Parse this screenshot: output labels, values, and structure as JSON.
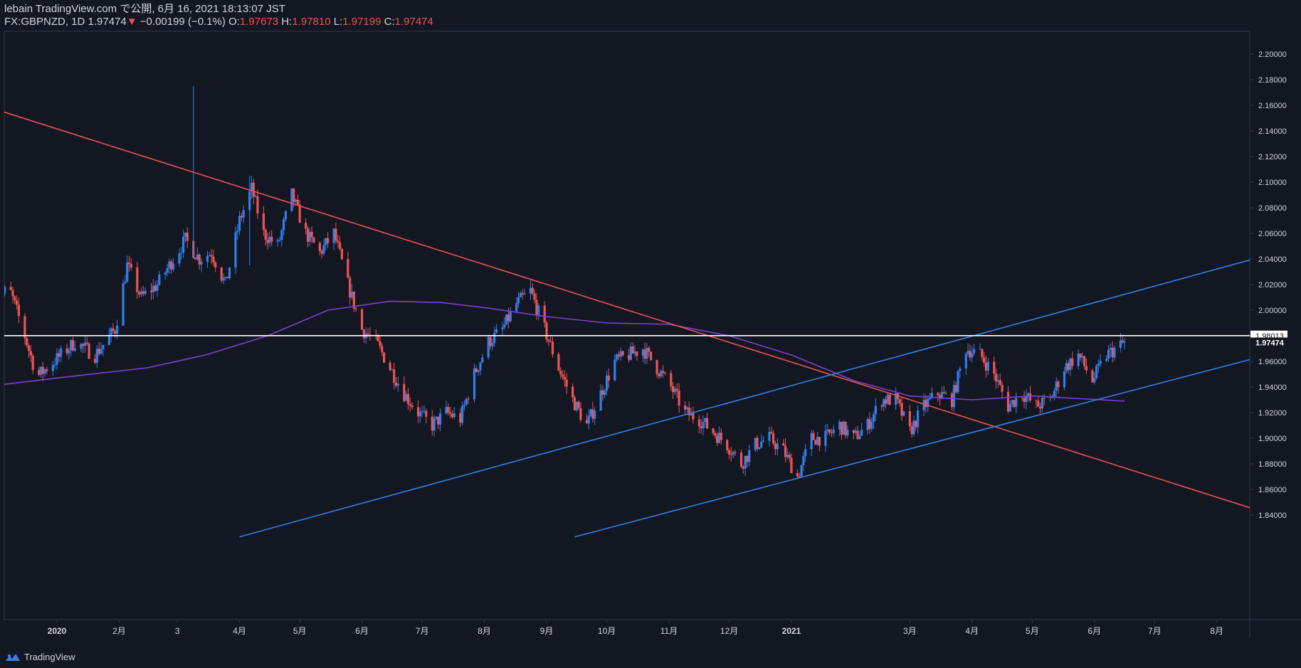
{
  "header": {
    "line1": "lebain TradingView.com で公開, 6月 16, 2021 18:13:07 JST",
    "symbol": "FX:GBPNZD, 1D",
    "last": "1.97474",
    "change_arrow": "▼",
    "change": "−0.00199 (−0.1%)",
    "o_label": "O:",
    "o": "1.97673",
    "h_label": "H:",
    "h": "1.97810",
    "l_label": "L:",
    "l": "1.97199",
    "c_label": "C:",
    "c": "1.97474"
  },
  "footer": {
    "brand": "TradingView",
    "logo_icon": "tradingview-logo-icon"
  },
  "colors": {
    "background": "#131722",
    "up": "#2f80ed",
    "down": "#ef5350",
    "trend_down": "#f0504e",
    "channel": "#2f80ed",
    "ma": "#7e3fd3",
    "level": "#ffffff"
  },
  "chart_data": {
    "type": "candlestick",
    "yticks": [
      "2.20000",
      "2.18000",
      "2.16000",
      "2.14000",
      "2.12000",
      "2.10000",
      "2.08000",
      "2.06000",
      "2.04000",
      "2.02000",
      "2.00000",
      "1.98000",
      "1.96000",
      "1.94000",
      "1.92000",
      "1.90000",
      "1.88000",
      "1.86000",
      "1.84000"
    ],
    "xticks": [
      "2020",
      "2月",
      "3",
      "4月",
      "5月",
      "6月",
      "7月",
      "8月",
      "9月",
      "10月",
      "11月",
      "12月",
      "2021",
      "3月",
      "4月",
      "5月",
      "6月",
      "7月",
      "8月"
    ],
    "ylim": [
      1.82,
      2.21
    ],
    "price_labels": {
      "level": "1.98013",
      "last": "1.97474"
    },
    "path": [
      [
        "2019-12-01",
        2.005
      ],
      [
        "2019-12-08",
        2.018
      ],
      [
        "2019-12-15",
        1.985
      ],
      [
        "2019-12-22",
        1.948
      ],
      [
        "2020-01-01",
        1.962
      ],
      [
        "2020-01-10",
        1.975
      ],
      [
        "2020-01-20",
        1.965
      ],
      [
        "2020-01-30",
        1.985
      ],
      [
        "2020-02-05",
        2.035
      ],
      [
        "2020-02-12",
        2.01
      ],
      [
        "2020-02-20",
        2.02
      ],
      [
        "2020-02-28",
        2.04
      ],
      [
        "2020-03-05",
        2.055
      ],
      [
        "2020-03-12",
        2.04
      ],
      [
        "2020-03-18",
        2.045
      ],
      [
        "2020-03-25",
        2.02
      ],
      [
        "2020-04-01",
        2.07
      ],
      [
        "2020-04-07",
        2.095
      ],
      [
        "2020-04-13",
        2.06
      ],
      [
        "2020-04-20",
        2.05
      ],
      [
        "2020-04-27",
        2.09
      ],
      [
        "2020-05-04",
        2.06
      ],
      [
        "2020-05-11",
        2.045
      ],
      [
        "2020-05-18",
        2.06
      ],
      [
        "2020-05-25",
        2.02
      ],
      [
        "2020-06-01",
        1.985
      ],
      [
        "2020-06-08",
        1.975
      ],
      [
        "2020-06-15",
        1.955
      ],
      [
        "2020-06-22",
        1.935
      ],
      [
        "2020-06-29",
        1.92
      ],
      [
        "2020-07-06",
        1.91
      ],
      [
        "2020-07-13",
        1.92
      ],
      [
        "2020-07-20",
        1.915
      ],
      [
        "2020-07-27",
        1.95
      ],
      [
        "2020-08-03",
        1.975
      ],
      [
        "2020-08-10",
        1.985
      ],
      [
        "2020-08-17",
        2.005
      ],
      [
        "2020-08-24",
        2.015
      ],
      [
        "2020-08-31",
        1.985
      ],
      [
        "2020-09-07",
        1.955
      ],
      [
        "2020-09-14",
        1.93
      ],
      [
        "2020-09-21",
        1.91
      ],
      [
        "2020-09-28",
        1.935
      ],
      [
        "2020-10-05",
        1.96
      ],
      [
        "2020-10-12",
        1.965
      ],
      [
        "2020-10-19",
        1.97
      ],
      [
        "2020-10-26",
        1.955
      ],
      [
        "2020-11-02",
        1.94
      ],
      [
        "2020-11-09",
        1.92
      ],
      [
        "2020-11-16",
        1.915
      ],
      [
        "2020-11-23",
        1.905
      ],
      [
        "2020-11-30",
        1.895
      ],
      [
        "2020-12-07",
        1.88
      ],
      [
        "2020-12-14",
        1.895
      ],
      [
        "2020-12-21",
        1.9
      ],
      [
        "2020-12-28",
        1.89
      ],
      [
        "2021-01-04",
        1.87
      ],
      [
        "2021-01-11",
        1.9
      ],
      [
        "2021-01-18",
        1.9
      ],
      [
        "2021-01-25",
        1.91
      ],
      [
        "2021-02-01",
        1.9
      ],
      [
        "2021-02-08",
        1.91
      ],
      [
        "2021-02-15",
        1.93
      ],
      [
        "2021-02-22",
        1.93
      ],
      [
        "2021-03-01",
        1.905
      ],
      [
        "2021-03-08",
        1.925
      ],
      [
        "2021-03-15",
        1.935
      ],
      [
        "2021-03-22",
        1.93
      ],
      [
        "2021-03-29",
        1.97
      ],
      [
        "2021-04-05",
        1.965
      ],
      [
        "2021-04-12",
        1.95
      ],
      [
        "2021-04-19",
        1.925
      ],
      [
        "2021-04-26",
        1.935
      ],
      [
        "2021-05-03",
        1.925
      ],
      [
        "2021-05-10",
        1.93
      ],
      [
        "2021-05-17",
        1.955
      ],
      [
        "2021-05-24",
        1.965
      ],
      [
        "2021-05-31",
        1.945
      ],
      [
        "2021-06-07",
        1.965
      ],
      [
        "2021-06-16",
        1.97474
      ]
    ],
    "spikes": [
      [
        "2020-03-09",
        2.175,
        2.04
      ],
      [
        "2020-04-06",
        2.105,
        2.035
      ]
    ],
    "moving_average": [
      [
        "2019-11-25",
        1.94
      ],
      [
        "2020-01-01",
        1.947
      ],
      [
        "2020-02-15",
        1.955
      ],
      [
        "2020-03-15",
        1.965
      ],
      [
        "2020-04-15",
        1.98
      ],
      [
        "2020-05-15",
        2.0
      ],
      [
        "2020-06-15",
        2.007
      ],
      [
        "2020-07-10",
        2.006
      ],
      [
        "2020-08-01",
        2.002
      ],
      [
        "2020-09-01",
        1.995
      ],
      [
        "2020-10-01",
        1.99
      ],
      [
        "2020-11-01",
        1.989
      ],
      [
        "2020-12-01",
        1.98
      ],
      [
        "2021-01-01",
        1.965
      ],
      [
        "2021-02-01",
        1.945
      ],
      [
        "2021-03-01",
        1.933
      ],
      [
        "2021-04-01",
        1.93
      ],
      [
        "2021-05-01",
        1.933
      ],
      [
        "2021-06-16",
        1.929
      ]
    ],
    "trendlines": [
      {
        "kind": "down",
        "points": [
          [
            "2019-11-25",
            2.16
          ],
          [
            "2021-08-31",
            1.839
          ]
        ]
      },
      {
        "kind": "channel",
        "points": [
          [
            "2020-04-01",
            1.823
          ],
          [
            "2021-08-31",
            2.045
          ]
        ]
      },
      {
        "kind": "channel",
        "points": [
          [
            "2020-09-15",
            1.823
          ],
          [
            "2021-08-31",
            1.967
          ]
        ]
      }
    ],
    "horizontal_level": 1.98013
  }
}
